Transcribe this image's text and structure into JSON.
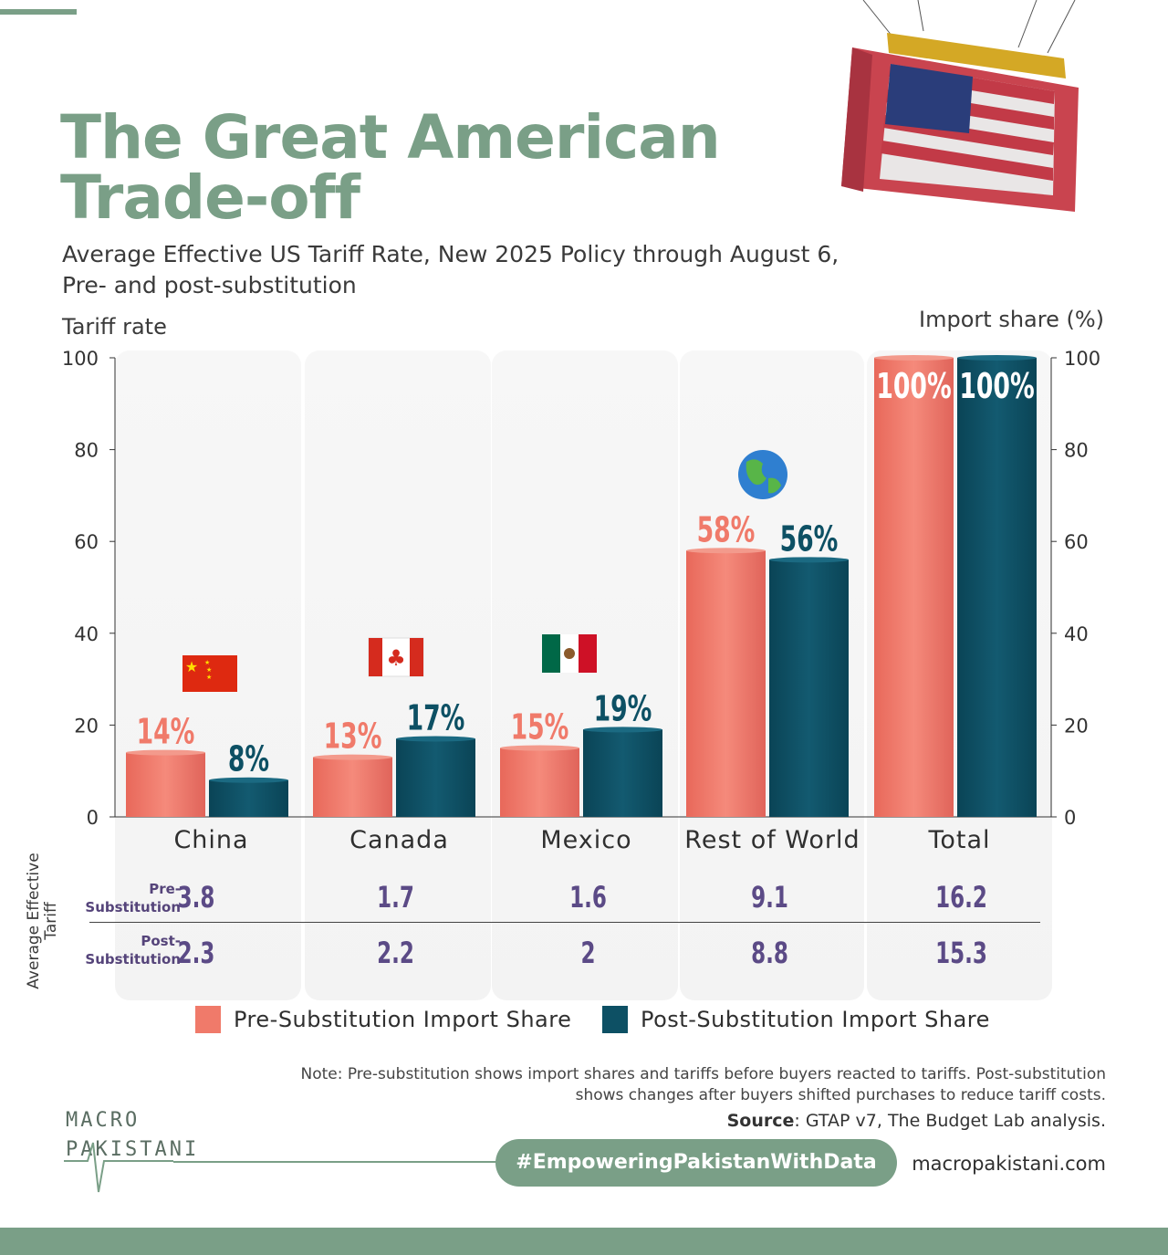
{
  "header": {
    "title_line1": "The Great American",
    "title_line2": "Trade-off",
    "subtitle_line1": "Average Effective US Tariff Rate, New 2025 Policy through August 6,",
    "subtitle_line2": "Pre- and post-substitution"
  },
  "colors": {
    "accent": "#7a9f87",
    "pre": "#f07a6a",
    "post": "#0d5064",
    "tariff_text": "#5b4a86"
  },
  "chart_data": {
    "type": "bar",
    "ylabel_left": "Tariff rate",
    "ylabel_right": "Import share (%)",
    "ylim": [
      0,
      100
    ],
    "yticks": [
      0,
      20,
      40,
      60,
      80,
      100
    ],
    "categories": [
      "China",
      "Canada",
      "Mexico",
      "Rest of World",
      "Total"
    ],
    "category_icons": [
      "china-flag-icon",
      "canada-flag-icon",
      "mexico-flag-icon",
      "globe-icon",
      ""
    ],
    "series": [
      {
        "name": "Pre-Substitution Import Share",
        "values": [
          14,
          13,
          15,
          58,
          100
        ],
        "labels": [
          "14%",
          "13%",
          "15%",
          "58%",
          "100%"
        ],
        "color": "#f07a6a"
      },
      {
        "name": "Post-Substitution Import Share",
        "values": [
          8,
          17,
          19,
          56,
          100
        ],
        "labels": [
          "8%",
          "17%",
          "19%",
          "56%",
          "100%"
        ],
        "color": "#0d5064"
      }
    ],
    "legend_position": "bottom",
    "grid": false
  },
  "tariff_table": {
    "side_label": "Average Effective Tariff",
    "rows": [
      {
        "label_line1": "Pre-",
        "label_line2": "Substitution",
        "values": [
          "3.8",
          "1.7",
          "1.6",
          "9.1",
          "16.2"
        ]
      },
      {
        "label_line1": "Post-",
        "label_line2": "Substitution",
        "values": [
          "2.3",
          "2.2",
          "2",
          "8.8",
          "15.3"
        ]
      }
    ]
  },
  "footer": {
    "note_line1": "Note: Pre-substitution shows import shares and tariffs before buyers reacted to tariffs. Post-substitution",
    "note_line2": "shows changes after buyers shifted purchases to reduce tariff costs.",
    "source_label": "Source",
    "source_text": ": GTAP v7, The Budget Lab analysis.",
    "logo_line1": "MACRO",
    "logo_line2": "PAKISTANI",
    "hashtag": "#EmpoweringPakistanWithData",
    "website": "macropakistani.com"
  }
}
